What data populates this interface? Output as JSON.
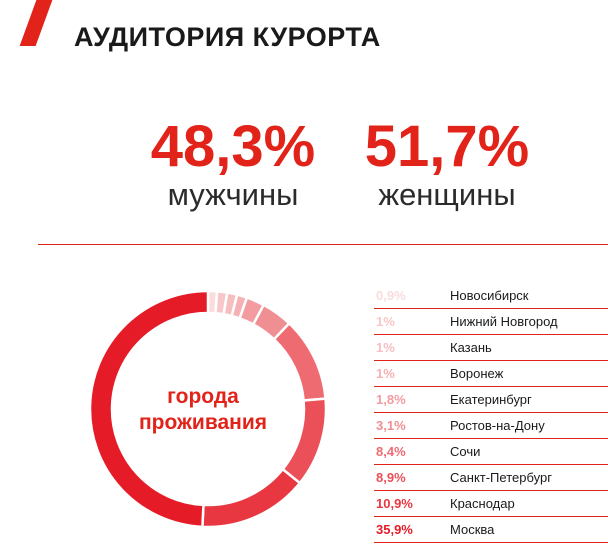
{
  "header": {
    "title": "АУДИТОРИЯ КУРОРТА"
  },
  "stats": {
    "male": {
      "value": "48,3%",
      "label": "мужчины"
    },
    "female": {
      "value": "51,7%",
      "label": "женщины"
    }
  },
  "colors": {
    "accent": "#e2231a",
    "text": "#1a1a1a"
  },
  "chart_data": {
    "type": "pie",
    "center_label": [
      "города",
      "проживания"
    ],
    "categories": [
      "Новосибирск",
      "Нижний Новгород",
      "Казань",
      "Воронеж",
      "Екатеринбург",
      "Ростов-на-Дону",
      "Сочи",
      "Санкт-Петербург",
      "Краснодар",
      "Москва"
    ],
    "values": [
      0.9,
      1,
      1,
      1,
      1.8,
      3.1,
      8.4,
      8.9,
      10.9,
      35.9
    ],
    "value_labels": [
      "0,9%",
      "1%",
      "1%",
      "1%",
      "1,8%",
      "3,1%",
      "8,4%",
      "8,9%",
      "10,9%",
      "35,9%"
    ],
    "slice_colors": [
      "#fbdcdd",
      "#f8c7c9",
      "#f7bec1",
      "#f5b1b4",
      "#f29ba0",
      "#f08f93",
      "#ee6b72",
      "#eb5058",
      "#e83740",
      "#e51c28"
    ]
  }
}
